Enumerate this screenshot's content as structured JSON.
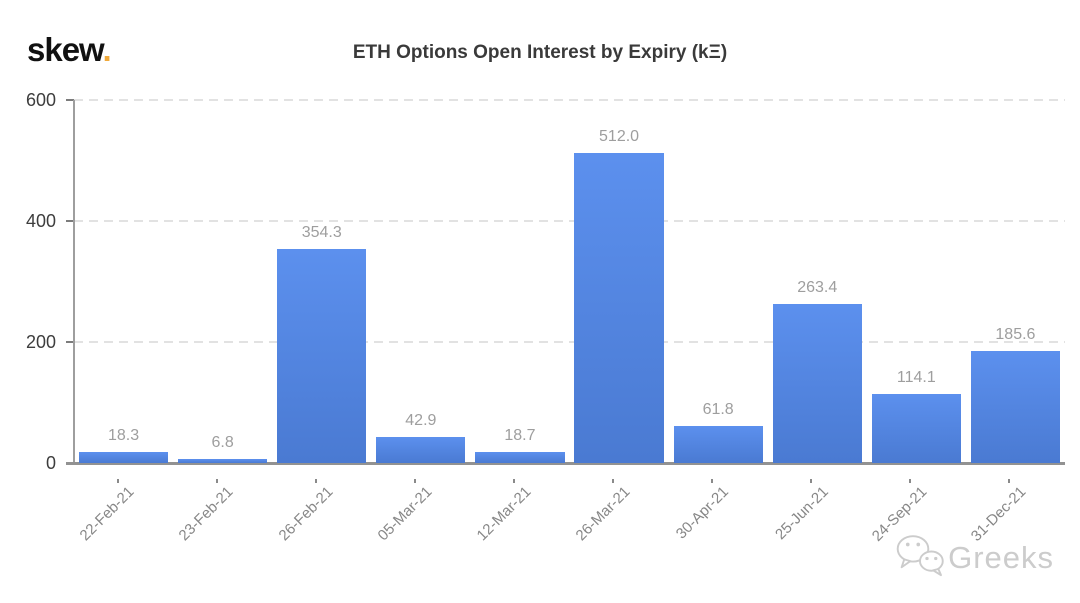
{
  "logo": {
    "text": "skew",
    "dot": ".",
    "dot_color": "#f0a93a"
  },
  "header": {
    "title": "ETH Options Open Interest by Expiry (kΞ)"
  },
  "watermark": {
    "icon": "wechat-icon",
    "text": "Greeks"
  },
  "chart_data": {
    "type": "bar",
    "title": "ETH Options Open Interest by Expiry (kΞ)",
    "categories": [
      "22-Feb-21",
      "23-Feb-21",
      "26-Feb-21",
      "05-Mar-21",
      "12-Mar-21",
      "26-Mar-21",
      "30-Apr-21",
      "25-Jun-21",
      "24-Sep-21",
      "31-Dec-21"
    ],
    "values": [
      18.3,
      6.8,
      354.3,
      42.9,
      18.7,
      512.0,
      61.8,
      263.4,
      114.1,
      185.6
    ],
    "value_labels": [
      "18.3",
      "6.8",
      "354.3",
      "42.9",
      "18.7",
      "512.0",
      "61.8",
      "263.4",
      "114.1",
      "185.6"
    ],
    "xlabel": "",
    "ylabel": "",
    "ylim": [
      0,
      600
    ],
    "yticks": [
      0,
      200,
      400,
      600
    ],
    "grid": "horizontal-dashed",
    "legend": "none",
    "colors": {
      "bar_top": "#5c90ee",
      "bar_bottom": "#4a7ad2",
      "value_label": "#9e9e9e",
      "axis_label": "#878787",
      "tick_label": "#3d3d3d",
      "gridline": "#e2e2e2",
      "axis_line": "#929292"
    }
  }
}
